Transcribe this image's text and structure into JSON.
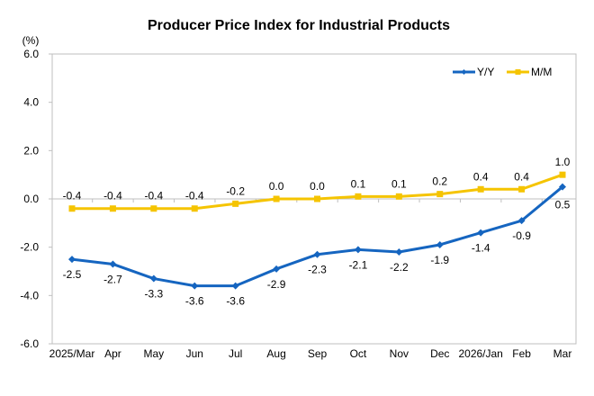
{
  "chart_data": {
    "type": "line",
    "title": "Producer Price Index for Industrial Products",
    "ylabel": "(%)",
    "xlabel": "",
    "ylim": [
      -6.0,
      6.0
    ],
    "yticks": [
      "6.0",
      "4.0",
      "2.0",
      "0.0",
      "-2.0",
      "-4.0",
      "-6.0"
    ],
    "ytick_values": [
      6,
      4,
      2,
      0,
      -2,
      -4,
      -6
    ],
    "grid": false,
    "legend_position": "top-right",
    "categories": [
      "2025/Mar",
      "Apr",
      "May",
      "Jun",
      "Jul",
      "Aug",
      "Sep",
      "Oct",
      "Nov",
      "Dec",
      "2026/Jan",
      "Feb",
      "Mar"
    ],
    "series": [
      {
        "name": "Y/Y",
        "color": "#1565C0",
        "marker": "diamond",
        "values": [
          -2.5,
          -2.7,
          -3.3,
          -3.6,
          -3.6,
          -2.9,
          -2.3,
          -2.1,
          -2.2,
          -1.9,
          -1.4,
          -0.9,
          0.5
        ],
        "labels": [
          "-2.5",
          "-2.7",
          "-3.3",
          "-3.6",
          "-3.6",
          "-2.9",
          "-2.3",
          "-2.1",
          "-2.2",
          "-1.9",
          "-1.4",
          "-0.9",
          "0.5"
        ]
      },
      {
        "name": "M/M",
        "color": "#F5C400",
        "marker": "square",
        "values": [
          -0.4,
          -0.4,
          -0.4,
          -0.4,
          -0.2,
          0.0,
          0.0,
          0.1,
          0.1,
          0.2,
          0.4,
          0.4,
          1.0
        ],
        "labels": [
          "-0.4",
          "-0.4",
          "-0.4",
          "-0.4",
          "-0.2",
          "0.0",
          "0.0",
          "0.1",
          "0.1",
          "0.2",
          "0.4",
          "0.4",
          "1.0"
        ]
      }
    ]
  }
}
